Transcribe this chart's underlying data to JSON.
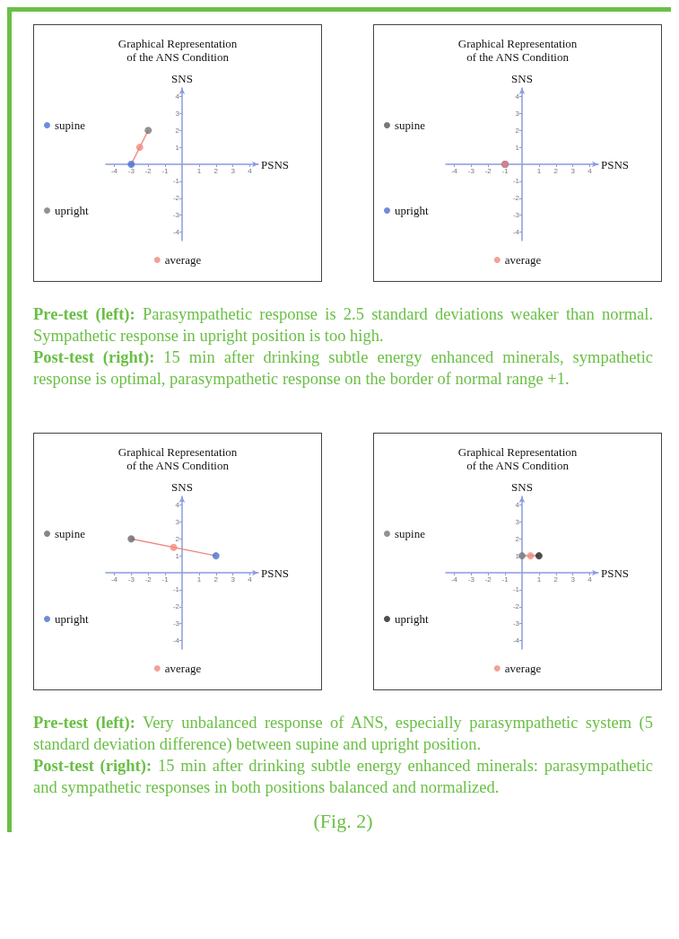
{
  "chart_data": [
    {
      "type": "scatter",
      "title": "Graphical Representation\nof the ANS Condition",
      "xlabel": "PSNS",
      "ylabel": "SNS",
      "xlim": [
        -4.5,
        4.5
      ],
      "ylim": [
        -4.5,
        4.5
      ],
      "xticks": [
        -4,
        -3,
        -2,
        -1,
        1,
        2,
        3,
        4
      ],
      "yticks": [
        -4,
        -3,
        -2,
        -1,
        1,
        2,
        3,
        4
      ],
      "grid": false,
      "legend": "left",
      "marker": "circle",
      "series": [
        {
          "type": "line",
          "marker": "none",
          "color": "#f08a80",
          "x": [
            -3,
            -2
          ],
          "values": [
            0,
            2
          ]
        },
        {
          "name": "supine",
          "color": "#4a6fd1",
          "x": [
            -3
          ],
          "values": [
            0
          ]
        },
        {
          "name": "upright",
          "color": "#777777",
          "x": [
            -2
          ],
          "values": [
            2
          ]
        },
        {
          "name": "average",
          "color": "#f08a80",
          "x": [
            -2.5
          ],
          "values": [
            1
          ]
        }
      ]
    },
    {
      "type": "scatter",
      "title": "Graphical Representation\nof the ANS Condition",
      "xlabel": "PSNS",
      "ylabel": "SNS",
      "xlim": [
        -4.5,
        4.5
      ],
      "ylim": [
        -4.5,
        4.5
      ],
      "xticks": [
        -4,
        -3,
        -2,
        -1,
        1,
        2,
        3,
        4
      ],
      "yticks": [
        -4,
        -3,
        -2,
        -1,
        1,
        2,
        3,
        4
      ],
      "grid": false,
      "legend": "left",
      "marker": "circle",
      "series": [
        {
          "name": "supine",
          "color": "#555555",
          "x": [
            -1
          ],
          "values": [
            0
          ]
        },
        {
          "name": "upright",
          "color": "#4a6fd1",
          "x": [
            -1
          ],
          "values": [
            0
          ]
        },
        {
          "name": "average",
          "color": "#f08a80",
          "x": [
            -1
          ],
          "values": [
            0
          ]
        }
      ]
    },
    {
      "type": "other",
      "annotations": [
        "Pre-test (left):",
        "Parasympathetic response is 2.5 standard deviations weaker than normal.  Sympathetic response in upright position is too high.",
        "Post-test (right):",
        "15 min after drinking subtle energy enhanced minerals, sympathetic response is optimal, parasympathetic response on the border of normal range +1."
      ]
    },
    {
      "type": "scatter",
      "title": "Graphical Representation\nof the ANS Condition",
      "xlabel": "PSNS",
      "ylabel": "SNS",
      "xlim": [
        -4.5,
        4.5
      ],
      "ylim": [
        -4.5,
        4.5
      ],
      "xticks": [
        -4,
        -3,
        -2,
        -1,
        1,
        2,
        3,
        4
      ],
      "yticks": [
        -4,
        -3,
        -2,
        -1,
        1,
        2,
        3,
        4
      ],
      "grid": false,
      "legend": "left",
      "marker": "circle",
      "series": [
        {
          "type": "line",
          "marker": "none",
          "color": "#f08a80",
          "x": [
            -3,
            2
          ],
          "values": [
            2,
            1
          ]
        },
        {
          "name": "supine",
          "color": "#666666",
          "x": [
            -3
          ],
          "values": [
            2
          ]
        },
        {
          "name": "upright",
          "color": "#4a6fd1",
          "x": [
            2
          ],
          "values": [
            1
          ]
        },
        {
          "name": "average",
          "color": "#f08a80",
          "x": [
            -0.5
          ],
          "values": [
            1.5
          ]
        }
      ]
    },
    {
      "type": "scatter",
      "title": "Graphical Representation\nof the ANS Condition",
      "xlabel": "PSNS",
      "ylabel": "SNS",
      "xlim": [
        -4.5,
        4.5
      ],
      "ylim": [
        -4.5,
        4.5
      ],
      "xticks": [
        -4,
        -3,
        -2,
        -1,
        1,
        2,
        3,
        4
      ],
      "yticks": [
        -4,
        -3,
        -2,
        -1,
        1,
        2,
        3,
        4
      ],
      "grid": false,
      "legend": "left",
      "marker": "circle",
      "series": [
        {
          "type": "line",
          "marker": "none",
          "color": "#f08a80",
          "x": [
            0,
            1
          ],
          "values": [
            1,
            1
          ]
        },
        {
          "name": "supine",
          "color": "#777777",
          "x": [
            0
          ],
          "values": [
            1
          ]
        },
        {
          "name": "upright",
          "color": "#222222",
          "x": [
            1
          ],
          "values": [
            1
          ]
        },
        {
          "name": "average",
          "color": "#f08a80",
          "x": [
            0.5
          ],
          "values": [
            1
          ]
        }
      ]
    },
    {
      "type": "other",
      "annotations": [
        "Pre-test (left):",
        "Very unbalanced response of ANS, especially parasympathetic system (5 standard deviation difference) between supine and upright position.",
        "Post-test (right):",
        "15 min after drinking subtle energy enhanced minerals: parasympathetic and sympathetic responses in both positions balanced and normalized.",
        "(Fig. 2)"
      ]
    }
  ]
}
